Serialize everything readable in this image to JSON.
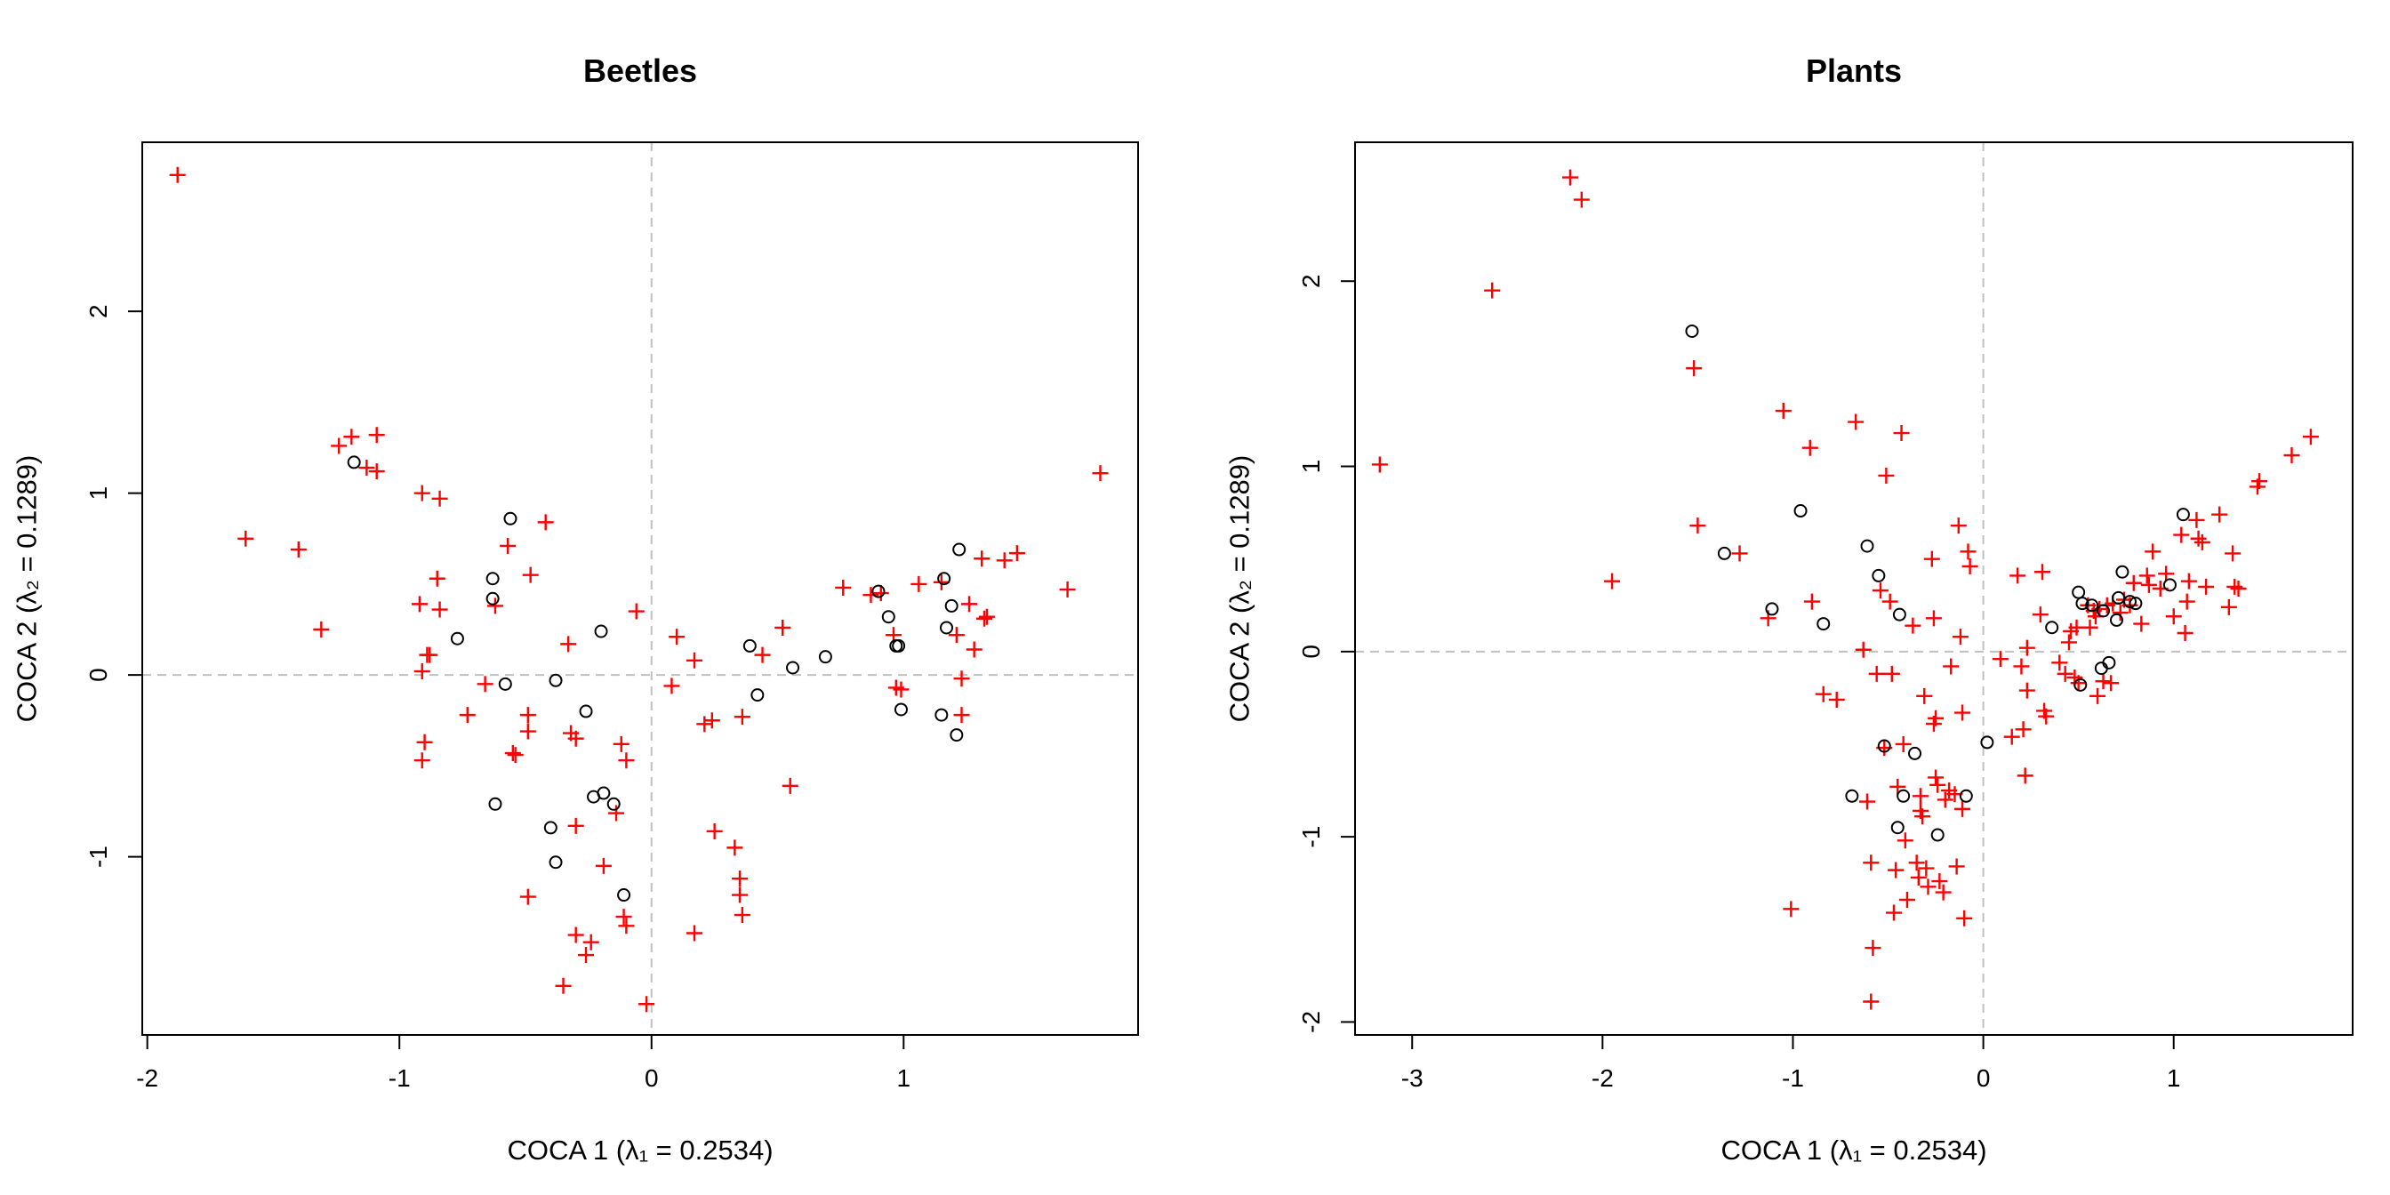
{
  "chart_data": [
    {
      "type": "scatter",
      "title": "Beetles",
      "xlabel": "COCA 1  (λ₁ = 0.2534)",
      "ylabel": "COCA 2  (λ₂ = 0.1289)",
      "xlim": [
        -2.02,
        1.93
      ],
      "ylim": [
        -1.98,
        2.93
      ],
      "xticks": [
        -2,
        -1,
        0,
        1
      ],
      "yticks": [
        -1,
        0,
        1,
        2
      ],
      "reference_lines": {
        "x": 0,
        "y": 0,
        "style": "dashed",
        "color": "#c0c0c0"
      },
      "grid": false,
      "series": [
        {
          "marker": "plus",
          "color": "#ff0000",
          "points": [
            [
              -1.88,
              2.75
            ],
            [
              -1.61,
              0.75
            ],
            [
              -1.4,
              0.69
            ],
            [
              -1.31,
              0.25
            ],
            [
              -1.24,
              1.26
            ],
            [
              -1.19,
              1.31
            ],
            [
              -1.13,
              1.14
            ],
            [
              -1.09,
              1.32
            ],
            [
              -1.09,
              1.12
            ],
            [
              -0.92,
              0.39
            ],
            [
              -0.91,
              1.0
            ],
            [
              -0.9,
              -0.37
            ],
            [
              -0.91,
              -0.47
            ],
            [
              -0.89,
              0.11
            ],
            [
              -0.88,
              0.11
            ],
            [
              -0.85,
              0.53
            ],
            [
              -0.84,
              0.97
            ],
            [
              -0.84,
              0.36
            ],
            [
              -0.91,
              0.02
            ],
            [
              -0.73,
              -0.22
            ],
            [
              -0.66,
              -0.05
            ],
            [
              -0.62,
              0.38
            ],
            [
              -0.57,
              0.71
            ],
            [
              -0.55,
              -0.43
            ],
            [
              -0.54,
              -0.44
            ],
            [
              -0.49,
              -0.22
            ],
            [
              -0.49,
              -0.31
            ],
            [
              -0.48,
              0.55
            ],
            [
              -0.42,
              0.84
            ],
            [
              -0.49,
              -1.22
            ],
            [
              -0.35,
              -1.71
            ],
            [
              -0.33,
              0.17
            ],
            [
              -0.32,
              -0.32
            ],
            [
              -0.3,
              -0.35
            ],
            [
              -0.3,
              -0.83
            ],
            [
              -0.3,
              -1.43
            ],
            [
              -0.26,
              -1.54
            ],
            [
              -0.24,
              -1.47
            ],
            [
              -0.19,
              -1.05
            ],
            [
              -0.14,
              -0.76
            ],
            [
              -0.12,
              -0.38
            ],
            [
              -0.1,
              -0.47
            ],
            [
              -0.11,
              -1.33
            ],
            [
              -0.1,
              -1.38
            ],
            [
              -0.06,
              0.35
            ],
            [
              -0.02,
              -1.81
            ],
            [
              0.08,
              -0.06
            ],
            [
              0.1,
              0.21
            ],
            [
              0.17,
              0.08
            ],
            [
              0.21,
              -0.27
            ],
            [
              0.24,
              -0.25
            ],
            [
              0.25,
              -0.86
            ],
            [
              0.17,
              -1.42
            ],
            [
              0.33,
              -0.95
            ],
            [
              0.36,
              -0.23
            ],
            [
              0.35,
              -1.12
            ],
            [
              0.35,
              -1.21
            ],
            [
              0.36,
              -1.32
            ],
            [
              0.44,
              0.11
            ],
            [
              0.52,
              0.26
            ],
            [
              0.55,
              -0.61
            ],
            [
              0.76,
              0.48
            ],
            [
              0.87,
              0.44
            ],
            [
              0.91,
              0.45
            ],
            [
              0.96,
              0.22
            ],
            [
              0.97,
              -0.07
            ],
            [
              0.99,
              -0.08
            ],
            [
              1.06,
              0.5
            ],
            [
              1.15,
              0.51
            ],
            [
              1.21,
              0.22
            ],
            [
              1.23,
              -0.02
            ],
            [
              1.23,
              -0.22
            ],
            [
              1.26,
              0.39
            ],
            [
              1.28,
              0.14
            ],
            [
              1.31,
              0.64
            ],
            [
              1.32,
              0.31
            ],
            [
              1.33,
              0.32
            ],
            [
              1.4,
              0.63
            ],
            [
              1.45,
              0.67
            ],
            [
              1.65,
              0.47
            ],
            [
              1.78,
              1.11
            ]
          ]
        },
        {
          "marker": "circle",
          "color": "#000000",
          "points": [
            [
              -1.18,
              1.17
            ],
            [
              -0.77,
              0.2
            ],
            [
              -0.63,
              0.53
            ],
            [
              -0.63,
              0.42
            ],
            [
              -0.62,
              -0.71
            ],
            [
              -0.58,
              -0.05
            ],
            [
              -0.56,
              0.86
            ],
            [
              -0.4,
              -0.84
            ],
            [
              -0.38,
              -1.03
            ],
            [
              -0.38,
              -0.03
            ],
            [
              -0.26,
              -0.2
            ],
            [
              -0.23,
              -0.67
            ],
            [
              -0.2,
              0.24
            ],
            [
              -0.19,
              -0.65
            ],
            [
              -0.15,
              -0.71
            ],
            [
              -0.11,
              -1.21
            ],
            [
              0.39,
              0.16
            ],
            [
              0.42,
              -0.11
            ],
            [
              0.56,
              0.04
            ],
            [
              0.69,
              0.1
            ],
            [
              0.9,
              0.46
            ],
            [
              0.94,
              0.32
            ],
            [
              0.97,
              0.16
            ],
            [
              0.98,
              0.16
            ],
            [
              0.99,
              -0.19
            ],
            [
              1.15,
              -0.22
            ],
            [
              1.16,
              0.53
            ],
            [
              1.17,
              0.26
            ],
            [
              1.19,
              0.38
            ],
            [
              1.21,
              -0.33
            ],
            [
              1.22,
              0.69
            ]
          ]
        }
      ]
    },
    {
      "type": "scatter",
      "title": "Plants",
      "xlabel": "COCA 1  (λ₁ = 0.2534)",
      "ylabel": "COCA 2  (λ₂ = 0.1289)",
      "xlim": [
        -3.3,
        1.94
      ],
      "ylim": [
        -2.07,
        2.75
      ],
      "xticks": [
        -3,
        -2,
        -1,
        0,
        1
      ],
      "yticks": [
        -2,
        -1,
        0,
        1,
        2
      ],
      "reference_lines": {
        "x": 0,
        "y": 0,
        "style": "dashed",
        "color": "#c0c0c0"
      },
      "grid": false,
      "series": [
        {
          "marker": "plus",
          "color": "#ff0000",
          "points": [
            [
              -3.17,
              1.01
            ],
            [
              -2.58,
              1.95
            ],
            [
              -2.17,
              2.56
            ],
            [
              -2.11,
              2.44
            ],
            [
              -1.95,
              0.38
            ],
            [
              -1.52,
              1.53
            ],
            [
              -1.5,
              0.68
            ],
            [
              -1.28,
              0.53
            ],
            [
              -1.13,
              0.18
            ],
            [
              -1.05,
              1.3
            ],
            [
              -1.01,
              -1.39
            ],
            [
              -0.91,
              1.1
            ],
            [
              -0.9,
              0.27
            ],
            [
              -0.84,
              -0.23
            ],
            [
              -0.77,
              -0.26
            ],
            [
              -0.67,
              1.24
            ],
            [
              -0.63,
              0.01
            ],
            [
              -0.61,
              -0.81
            ],
            [
              -0.59,
              -1.14
            ],
            [
              -0.58,
              -1.6
            ],
            [
              -0.59,
              -1.89
            ],
            [
              -0.56,
              -0.12
            ],
            [
              -0.54,
              0.33
            ],
            [
              -0.52,
              -0.52
            ],
            [
              -0.51,
              0.95
            ],
            [
              -0.49,
              0.27
            ],
            [
              -0.48,
              -0.12
            ],
            [
              -0.46,
              -1.18
            ],
            [
              -0.47,
              -1.41
            ],
            [
              -0.45,
              -0.73
            ],
            [
              -0.43,
              1.18
            ],
            [
              -0.42,
              -0.5
            ],
            [
              -0.41,
              -1.02
            ],
            [
              -0.4,
              -1.34
            ],
            [
              -0.37,
              0.14
            ],
            [
              -0.35,
              -1.14
            ],
            [
              -0.34,
              -1.22
            ],
            [
              -0.33,
              -0.78
            ],
            [
              -0.33,
              -0.86
            ],
            [
              -0.32,
              -0.89
            ],
            [
              -0.31,
              -0.24
            ],
            [
              -0.3,
              -1.17
            ],
            [
              -0.29,
              -1.27
            ],
            [
              -0.27,
              0.5
            ],
            [
              -0.26,
              0.18
            ],
            [
              -0.26,
              -0.39
            ],
            [
              -0.25,
              -0.36
            ],
            [
              -0.25,
              -0.68
            ],
            [
              -0.24,
              -0.72
            ],
            [
              -0.23,
              -1.24
            ],
            [
              -0.21,
              -1.3
            ],
            [
              -0.2,
              -0.8
            ],
            [
              -0.18,
              -0.75
            ],
            [
              -0.17,
              -0.08
            ],
            [
              -0.15,
              -0.77
            ],
            [
              -0.14,
              -1.16
            ],
            [
              -0.13,
              0.68
            ],
            [
              -0.12,
              0.08
            ],
            [
              -0.11,
              -0.33
            ],
            [
              -0.11,
              -0.85
            ],
            [
              -0.1,
              -1.44
            ],
            [
              -0.08,
              0.54
            ],
            [
              -0.07,
              0.46
            ],
            [
              0.09,
              -0.04
            ],
            [
              0.15,
              -0.46
            ],
            [
              0.18,
              0.41
            ],
            [
              0.2,
              -0.08
            ],
            [
              0.21,
              -0.42
            ],
            [
              0.22,
              -0.67
            ],
            [
              0.23,
              0.02
            ],
            [
              0.23,
              -0.21
            ],
            [
              0.3,
              0.2
            ],
            [
              0.31,
              0.43
            ],
            [
              0.32,
              -0.32
            ],
            [
              0.33,
              -0.35
            ],
            [
              0.4,
              -0.06
            ],
            [
              0.43,
              -0.12
            ],
            [
              0.45,
              0.05
            ],
            [
              0.46,
              0.11
            ],
            [
              0.48,
              -0.14
            ],
            [
              0.49,
              0.13
            ],
            [
              0.5,
              -0.17
            ],
            [
              0.55,
              0.25
            ],
            [
              0.56,
              0.13
            ],
            [
              0.58,
              0.22
            ],
            [
              0.59,
              0.19
            ],
            [
              0.6,
              -0.24
            ],
            [
              0.61,
              0.23
            ],
            [
              0.63,
              -0.16
            ],
            [
              0.65,
              0.25
            ],
            [
              0.67,
              -0.17
            ],
            [
              0.68,
              0.26
            ],
            [
              0.72,
              0.21
            ],
            [
              0.74,
              0.28
            ],
            [
              0.77,
              0.25
            ],
            [
              0.79,
              0.37
            ],
            [
              0.83,
              0.15
            ],
            [
              0.86,
              0.41
            ],
            [
              0.87,
              0.36
            ],
            [
              0.89,
              0.54
            ],
            [
              0.93,
              0.34
            ],
            [
              0.96,
              0.42
            ],
            [
              1.0,
              0.19
            ],
            [
              1.04,
              0.63
            ],
            [
              1.06,
              0.1
            ],
            [
              1.07,
              0.27
            ],
            [
              1.08,
              0.38
            ],
            [
              1.12,
              0.71
            ],
            [
              1.13,
              0.61
            ],
            [
              1.15,
              0.59
            ],
            [
              1.17,
              0.35
            ],
            [
              1.24,
              0.74
            ],
            [
              1.29,
              0.24
            ],
            [
              1.31,
              0.53
            ],
            [
              1.32,
              0.35
            ],
            [
              1.34,
              0.34
            ],
            [
              1.44,
              0.89
            ],
            [
              1.45,
              0.92
            ],
            [
              1.62,
              1.06
            ],
            [
              1.72,
              1.16
            ]
          ]
        },
        {
          "marker": "circle",
          "color": "#000000",
          "points": [
            [
              -1.53,
              1.73
            ],
            [
              -1.36,
              0.53
            ],
            [
              -1.11,
              0.23
            ],
            [
              -0.96,
              0.76
            ],
            [
              -0.84,
              0.15
            ],
            [
              -0.69,
              -0.78
            ],
            [
              -0.61,
              0.57
            ],
            [
              -0.55,
              0.41
            ],
            [
              -0.52,
              -0.51
            ],
            [
              -0.45,
              -0.95
            ],
            [
              -0.44,
              0.2
            ],
            [
              -0.42,
              -0.78
            ],
            [
              -0.36,
              -0.55
            ],
            [
              -0.24,
              -0.99
            ],
            [
              -0.09,
              -0.78
            ],
            [
              0.02,
              -0.49
            ],
            [
              0.36,
              0.13
            ],
            [
              0.5,
              0.32
            ],
            [
              0.51,
              -0.18
            ],
            [
              0.52,
              0.26
            ],
            [
              0.57,
              0.25
            ],
            [
              0.62,
              -0.09
            ],
            [
              0.63,
              0.22
            ],
            [
              0.66,
              -0.06
            ],
            [
              0.7,
              0.17
            ],
            [
              0.71,
              0.29
            ],
            [
              0.73,
              0.43
            ],
            [
              0.77,
              0.27
            ],
            [
              0.8,
              0.26
            ],
            [
              0.98,
              0.36
            ],
            [
              1.05,
              0.74
            ]
          ]
        }
      ]
    }
  ]
}
